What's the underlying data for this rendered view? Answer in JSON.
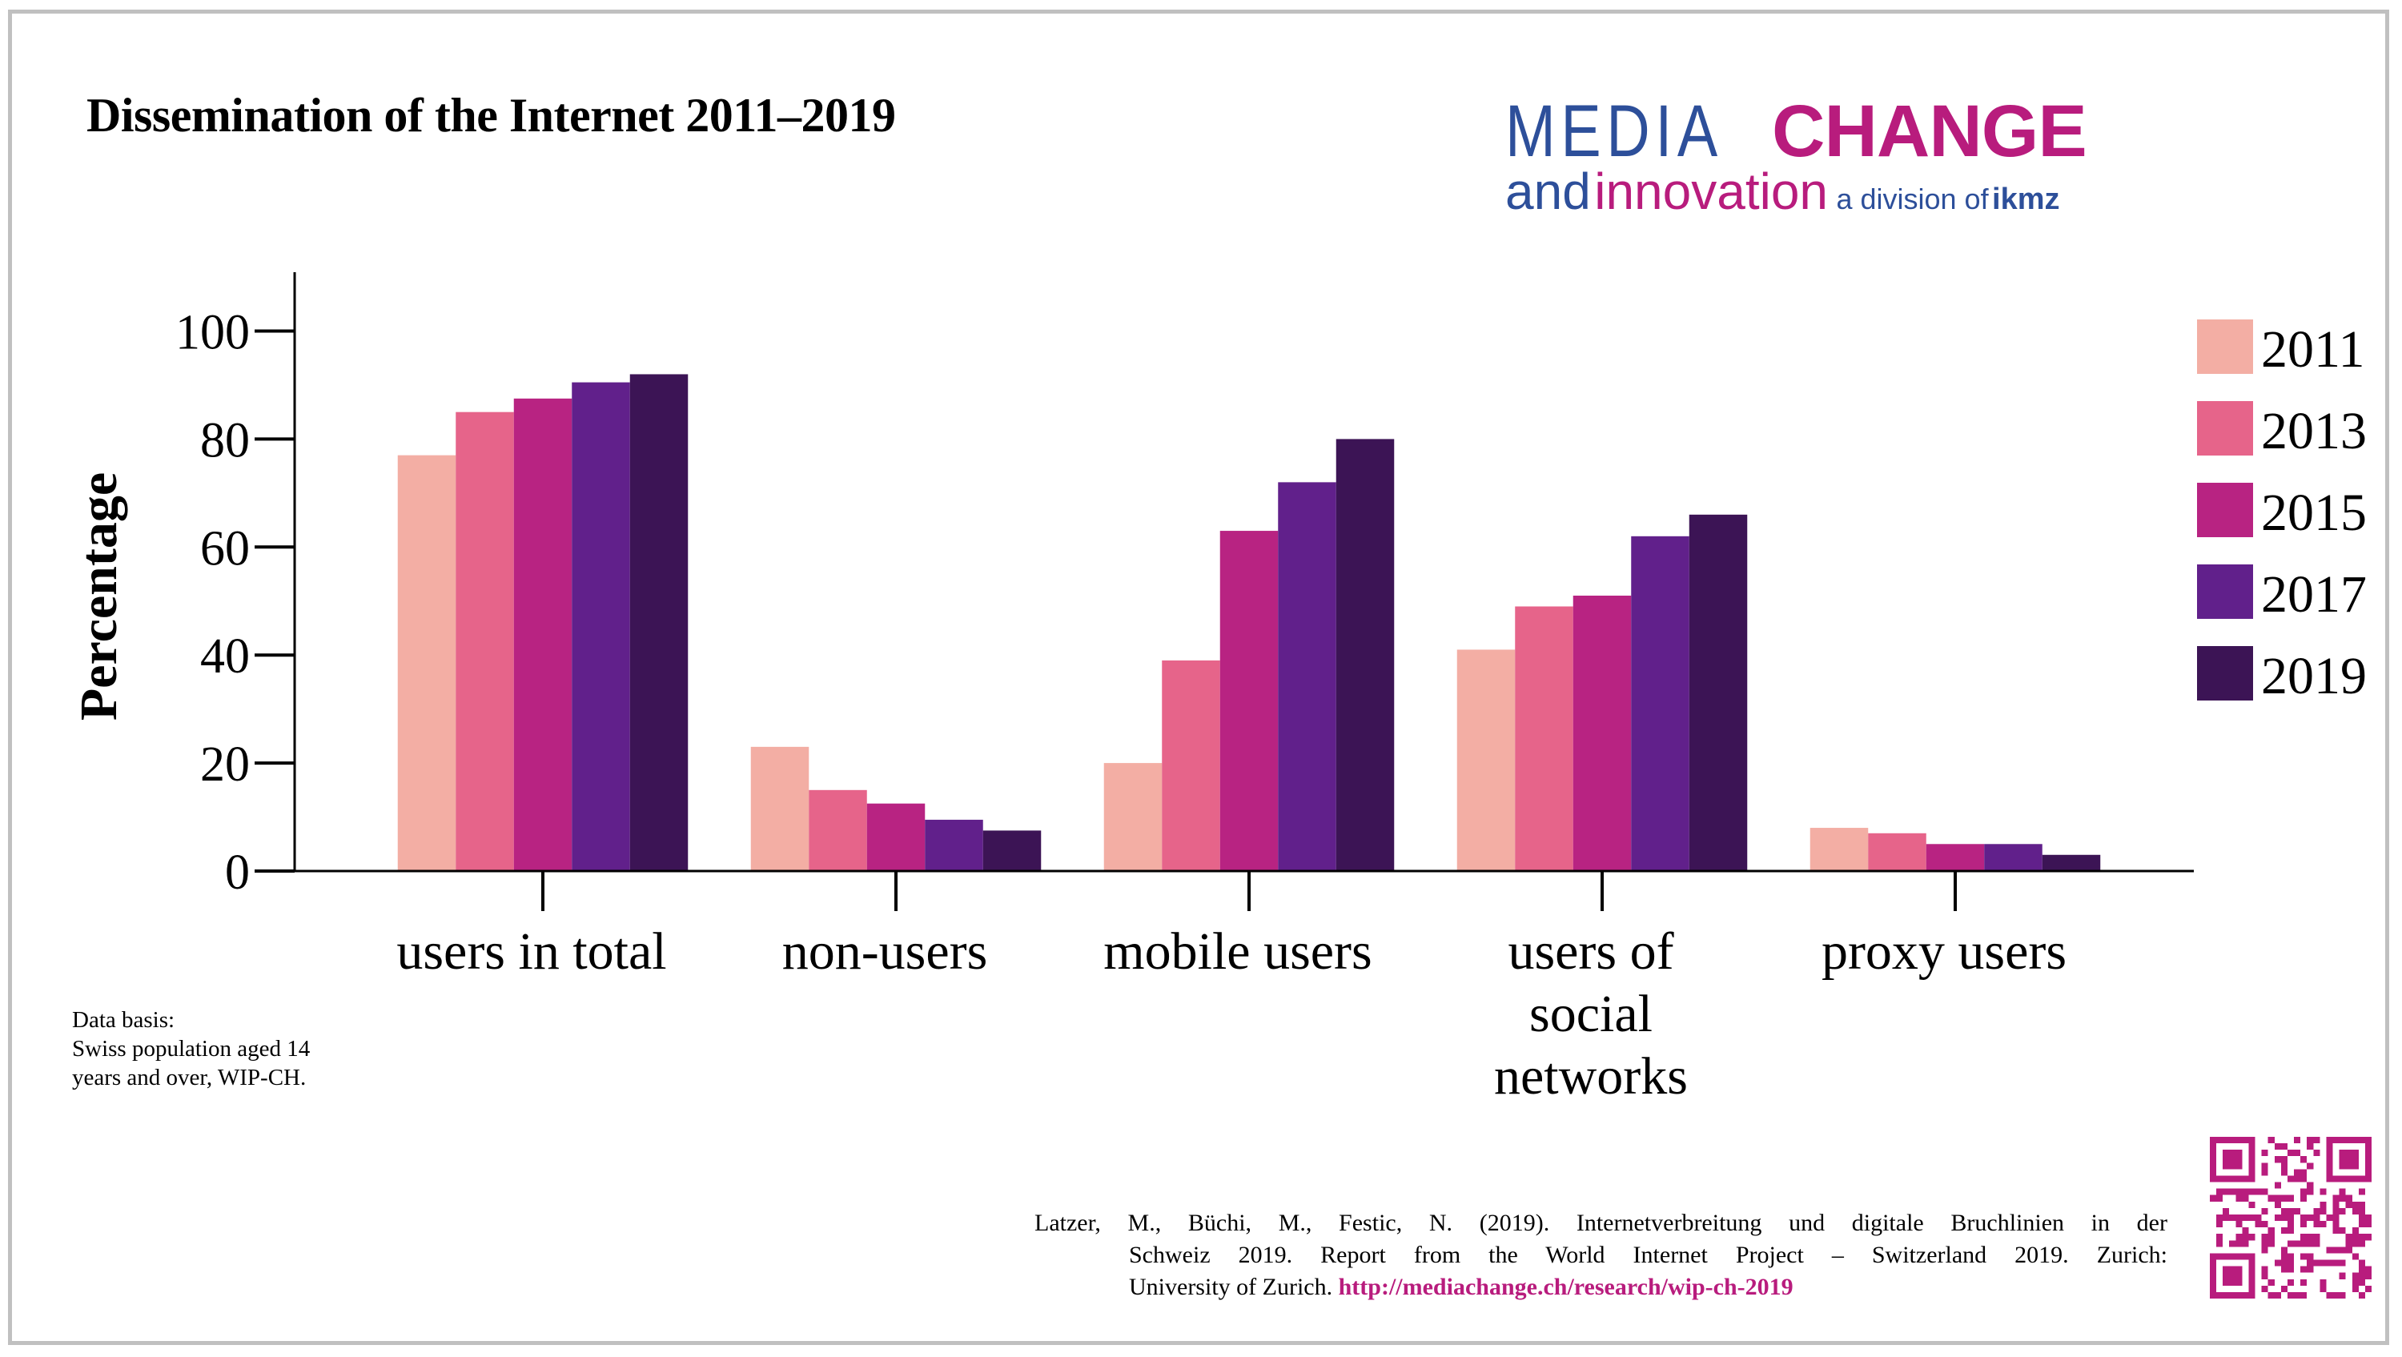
{
  "title": "Dissemination of the Internet 2011–2019",
  "logo": {
    "media": "MEDIA",
    "change": "CHANGE",
    "and": "and",
    "innovation": "innovation",
    "division": "a division of",
    "ikmz": "ikmz",
    "colors": {
      "blue": "#2d4f9a",
      "magenta": "#b81c7d"
    }
  },
  "note": {
    "line1": "Data basis:",
    "line2": "Swiss population aged 14",
    "line3": "years and over, WIP-CH."
  },
  "citation": {
    "line1": "Latzer, M., Büchi, M., Festic, N. (2019). Internetverbreitung und digitale Bruchlinien in der",
    "line2": "Schweiz 2019. Report from the World Internet Project – Switzerland 2019. Zurich:",
    "line3": "University of Zurich.",
    "url": "http://mediachange.ch/research/wip-ch-2019"
  },
  "qr_code": {
    "icon": "qr-code-icon",
    "color": "#b81c7d"
  },
  "chart_data": {
    "type": "bar",
    "title": "Dissemination of the Internet 2011–2019",
    "xlabel": "",
    "ylabel": "Percentage",
    "ylim": [
      0,
      110
    ],
    "yticks": [
      0,
      20,
      40,
      60,
      80,
      100
    ],
    "grid": false,
    "legend_position": "right",
    "categories": [
      [
        "users in total"
      ],
      [
        "non-users"
      ],
      [
        "mobile users"
      ],
      [
        "users of",
        "social",
        "networks"
      ],
      [
        "proxy users"
      ]
    ],
    "category_names": [
      "users in total",
      "non-users",
      "mobile users",
      "users of social networks",
      "proxy users"
    ],
    "series": [
      {
        "name": "2011",
        "color": "#f3aea4",
        "values": [
          77,
          23,
          20,
          41,
          8
        ]
      },
      {
        "name": "2013",
        "color": "#e6648a",
        "values": [
          85,
          15,
          39,
          49,
          7
        ]
      },
      {
        "name": "2015",
        "color": "#b82382",
        "values": [
          87.5,
          12.5,
          63,
          51,
          5
        ]
      },
      {
        "name": "2017",
        "color": "#61208b",
        "values": [
          90.5,
          9.5,
          72,
          62,
          5
        ]
      },
      {
        "name": "2019",
        "color": "#3c1455",
        "values": [
          92,
          7.5,
          80,
          66,
          3
        ]
      }
    ]
  }
}
